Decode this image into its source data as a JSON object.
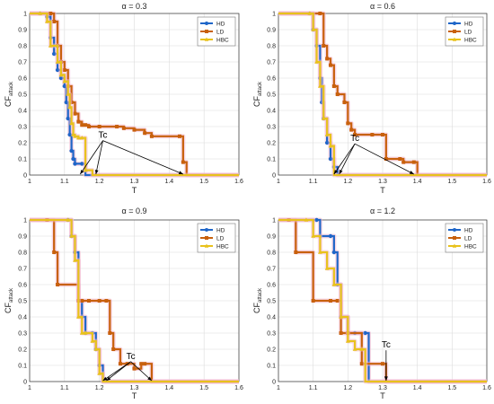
{
  "colors": {
    "HD": "#1f66c8",
    "LD": "#c8610d",
    "HBC": "#e8c21c",
    "grid": "#dcdcdc",
    "axis": "#333333",
    "text": "#222222",
    "highlight": "#f2b8cf"
  },
  "chart_data": [
    {
      "type": "line",
      "title": "α = 0.3",
      "xlabel": "T",
      "ylabel": "CF",
      "ylabel_sub": "attack",
      "xlim": [
        1,
        1.6
      ],
      "ylim": [
        0,
        1
      ],
      "xticks": [
        "1",
        "1.1",
        "1.2",
        "1.3",
        "1.4",
        "1.5",
        "1.6"
      ],
      "yticks": [
        "0",
        "0.1",
        "0.2",
        "0.3",
        "0.4",
        "0.5",
        "0.6",
        "0.7",
        "0.8",
        "0.9",
        "1"
      ],
      "legend": {
        "position": "top-right",
        "entries": [
          "HD",
          "LD",
          "HBC"
        ]
      },
      "grid": true,
      "annotation": {
        "text": "Tc",
        "label_at": [
          1.21,
          0.23
        ],
        "targets": [
          [
            1.145,
            0.0
          ],
          [
            1.19,
            0.0
          ],
          [
            1.44,
            0.0
          ]
        ]
      },
      "series": [
        {
          "name": "HD",
          "color_key": "HD",
          "x": [
            1.0,
            1.03,
            1.05,
            1.06,
            1.07,
            1.08,
            1.09,
            1.1,
            1.105,
            1.11,
            1.115,
            1.12,
            1.125,
            1.13,
            1.15,
            1.16,
            1.6
          ],
          "y": [
            1.0,
            1.0,
            0.98,
            0.85,
            0.75,
            0.65,
            0.6,
            0.55,
            0.45,
            0.35,
            0.25,
            0.15,
            0.1,
            0.07,
            0.07,
            0.0,
            0.0
          ]
        },
        {
          "name": "LD",
          "color_key": "LD",
          "x": [
            1.0,
            1.06,
            1.07,
            1.08,
            1.09,
            1.1,
            1.11,
            1.12,
            1.13,
            1.14,
            1.15,
            1.16,
            1.17,
            1.2,
            1.25,
            1.27,
            1.3,
            1.33,
            1.35,
            1.43,
            1.44,
            1.45,
            1.6
          ],
          "y": [
            1.0,
            1.0,
            0.95,
            0.8,
            0.7,
            0.65,
            0.55,
            0.45,
            0.38,
            0.33,
            0.31,
            0.31,
            0.3,
            0.3,
            0.3,
            0.29,
            0.28,
            0.26,
            0.24,
            0.24,
            0.08,
            0.0,
            0.0
          ]
        },
        {
          "name": "HBC",
          "color_key": "HBC",
          "x": [
            1.0,
            1.03,
            1.05,
            1.06,
            1.08,
            1.09,
            1.1,
            1.11,
            1.115,
            1.12,
            1.125,
            1.13,
            1.14,
            1.15,
            1.16,
            1.18,
            1.2,
            1.6
          ],
          "y": [
            1.0,
            1.0,
            0.95,
            0.8,
            0.7,
            0.62,
            0.58,
            0.5,
            0.42,
            0.32,
            0.25,
            0.24,
            0.23,
            0.23,
            0.03,
            0.0,
            0.0,
            0.0
          ]
        }
      ]
    },
    {
      "type": "line",
      "title": "α = 0.6",
      "xlabel": "T",
      "ylabel": "CF",
      "ylabel_sub": "attack",
      "xlim": [
        1,
        1.6
      ],
      "ylim": [
        0,
        1
      ],
      "xticks": [
        "1",
        "1.1",
        "1.2",
        "1.3",
        "1.4",
        "1.5",
        "1.6"
      ],
      "yticks": [
        "0",
        "0.1",
        "0.2",
        "0.3",
        "0.4",
        "0.5",
        "0.6",
        "0.7",
        "0.8",
        "0.9",
        "1"
      ],
      "legend": {
        "position": "top-right",
        "entries": [
          "HD",
          "LD",
          "HBC"
        ]
      },
      "grid": true,
      "annotation": {
        "text": "Tc",
        "label_at": [
          1.22,
          0.21
        ],
        "targets": [
          [
            1.16,
            0.0
          ],
          [
            1.175,
            0.0
          ],
          [
            1.39,
            0.0
          ]
        ]
      },
      "series": [
        {
          "name": "HD",
          "color_key": "HD",
          "x": [
            1.0,
            1.09,
            1.1,
            1.11,
            1.12,
            1.125,
            1.13,
            1.14,
            1.15,
            1.16,
            1.17,
            1.6
          ],
          "y": [
            1.0,
            1.0,
            0.9,
            0.8,
            0.6,
            0.45,
            0.35,
            0.2,
            0.1,
            0.05,
            0.0,
            0.0
          ]
        },
        {
          "name": "LD",
          "color_key": "LD",
          "x": [
            1.0,
            1.12,
            1.13,
            1.14,
            1.15,
            1.16,
            1.17,
            1.19,
            1.2,
            1.21,
            1.22,
            1.27,
            1.3,
            1.31,
            1.35,
            1.36,
            1.39,
            1.4,
            1.6
          ],
          "y": [
            1.0,
            1.0,
            0.8,
            0.72,
            0.68,
            0.55,
            0.5,
            0.45,
            0.32,
            0.28,
            0.25,
            0.25,
            0.25,
            0.1,
            0.1,
            0.08,
            0.08,
            0.0,
            0.0
          ]
        },
        {
          "name": "HBC",
          "color_key": "HBC",
          "x": [
            1.0,
            1.09,
            1.1,
            1.11,
            1.12,
            1.13,
            1.14,
            1.15,
            1.16,
            1.6
          ],
          "y": [
            1.0,
            1.0,
            0.9,
            0.7,
            0.55,
            0.35,
            0.25,
            0.18,
            0.0,
            0.0
          ]
        }
      ]
    },
    {
      "type": "line",
      "title": "α = 0.9",
      "xlabel": "T",
      "ylabel": "CF",
      "ylabel_sub": "attack",
      "xlim": [
        1,
        1.6
      ],
      "ylim": [
        0,
        1
      ],
      "xticks": [
        "1",
        "1.1",
        "1.2",
        "1.3",
        "1.4",
        "1.5",
        "1.6"
      ],
      "yticks": [
        "0",
        "0.1",
        "0.2",
        "0.3",
        "0.4",
        "0.5",
        "0.6",
        "0.7",
        "0.8",
        "0.9",
        "1"
      ],
      "legend": {
        "position": "top-right",
        "entries": [
          "HD",
          "LD",
          "HBC"
        ]
      },
      "grid": true,
      "annotation": {
        "text": "Tc",
        "label_at": [
          1.29,
          0.14
        ],
        "targets": [
          [
            1.21,
            0.0
          ],
          [
            1.22,
            0.0
          ],
          [
            1.35,
            0.0
          ]
        ]
      },
      "series": [
        {
          "name": "HD",
          "color_key": "HD",
          "x": [
            1.0,
            1.11,
            1.12,
            1.13,
            1.14,
            1.15,
            1.16,
            1.18,
            1.19,
            1.2,
            1.21,
            1.6
          ],
          "y": [
            1.0,
            1.0,
            0.9,
            0.8,
            0.5,
            0.4,
            0.3,
            0.3,
            0.2,
            0.1,
            0.0,
            0.0
          ]
        },
        {
          "name": "LD",
          "color_key": "LD",
          "x": [
            1.0,
            1.05,
            1.07,
            1.08,
            1.14,
            1.15,
            1.17,
            1.2,
            1.22,
            1.23,
            1.24,
            1.26,
            1.28,
            1.3,
            1.32,
            1.33,
            1.35,
            1.6
          ],
          "y": [
            1.0,
            1.0,
            0.8,
            0.6,
            0.5,
            0.5,
            0.5,
            0.5,
            0.5,
            0.3,
            0.2,
            0.11,
            0.11,
            0.08,
            0.11,
            0.11,
            0.0,
            0.0
          ]
        },
        {
          "name": "HBC",
          "color_key": "HBC",
          "x": [
            1.0,
            1.11,
            1.12,
            1.13,
            1.14,
            1.15,
            1.16,
            1.18,
            1.19,
            1.2,
            1.21,
            1.6
          ],
          "y": [
            1.0,
            1.0,
            0.9,
            0.75,
            0.4,
            0.3,
            0.3,
            0.25,
            0.2,
            0.05,
            0.0,
            0.0
          ]
        }
      ]
    },
    {
      "type": "line",
      "title": "α = 1.2",
      "xlabel": "T",
      "ylabel": "CF",
      "ylabel_sub": "attack",
      "xlim": [
        1,
        1.6
      ],
      "ylim": [
        0,
        1
      ],
      "xticks": [
        "1",
        "1.1",
        "1.2",
        "1.3",
        "1.4",
        "1.5",
        "1.6"
      ],
      "yticks": [
        "0",
        "0.1",
        "0.2",
        "0.3",
        "0.4",
        "0.5",
        "0.6",
        "0.7",
        "0.8",
        "0.9",
        "1"
      ],
      "legend": {
        "position": "top-right",
        "entries": [
          "HD",
          "LD",
          "HBC"
        ]
      },
      "grid": true,
      "annotation": {
        "text": "Tc",
        "label_at": [
          1.31,
          0.21
        ],
        "targets": [
          [
            1.31,
            0.0
          ]
        ]
      },
      "series": [
        {
          "name": "HD",
          "color_key": "HD",
          "x": [
            1.0,
            1.11,
            1.12,
            1.15,
            1.16,
            1.17,
            1.18,
            1.2,
            1.22,
            1.25,
            1.26,
            1.6
          ],
          "y": [
            1.0,
            1.0,
            0.9,
            0.9,
            0.8,
            0.6,
            0.4,
            0.3,
            0.3,
            0.3,
            0.0,
            0.0
          ]
        },
        {
          "name": "LD",
          "color_key": "LD",
          "x": [
            1.0,
            1.03,
            1.05,
            1.1,
            1.15,
            1.17,
            1.18,
            1.2,
            1.24,
            1.3,
            1.31,
            1.6
          ],
          "y": [
            1.0,
            1.0,
            0.8,
            0.5,
            0.5,
            0.5,
            0.3,
            0.3,
            0.11,
            0.11,
            0.0,
            0.0
          ]
        },
        {
          "name": "HBC",
          "color_key": "HBC",
          "x": [
            1.0,
            1.08,
            1.1,
            1.12,
            1.14,
            1.16,
            1.18,
            1.2,
            1.22,
            1.24,
            1.25,
            1.6
          ],
          "y": [
            1.0,
            1.0,
            0.9,
            0.8,
            0.7,
            0.6,
            0.4,
            0.25,
            0.2,
            0.2,
            0.0,
            0.0
          ]
        }
      ]
    }
  ]
}
